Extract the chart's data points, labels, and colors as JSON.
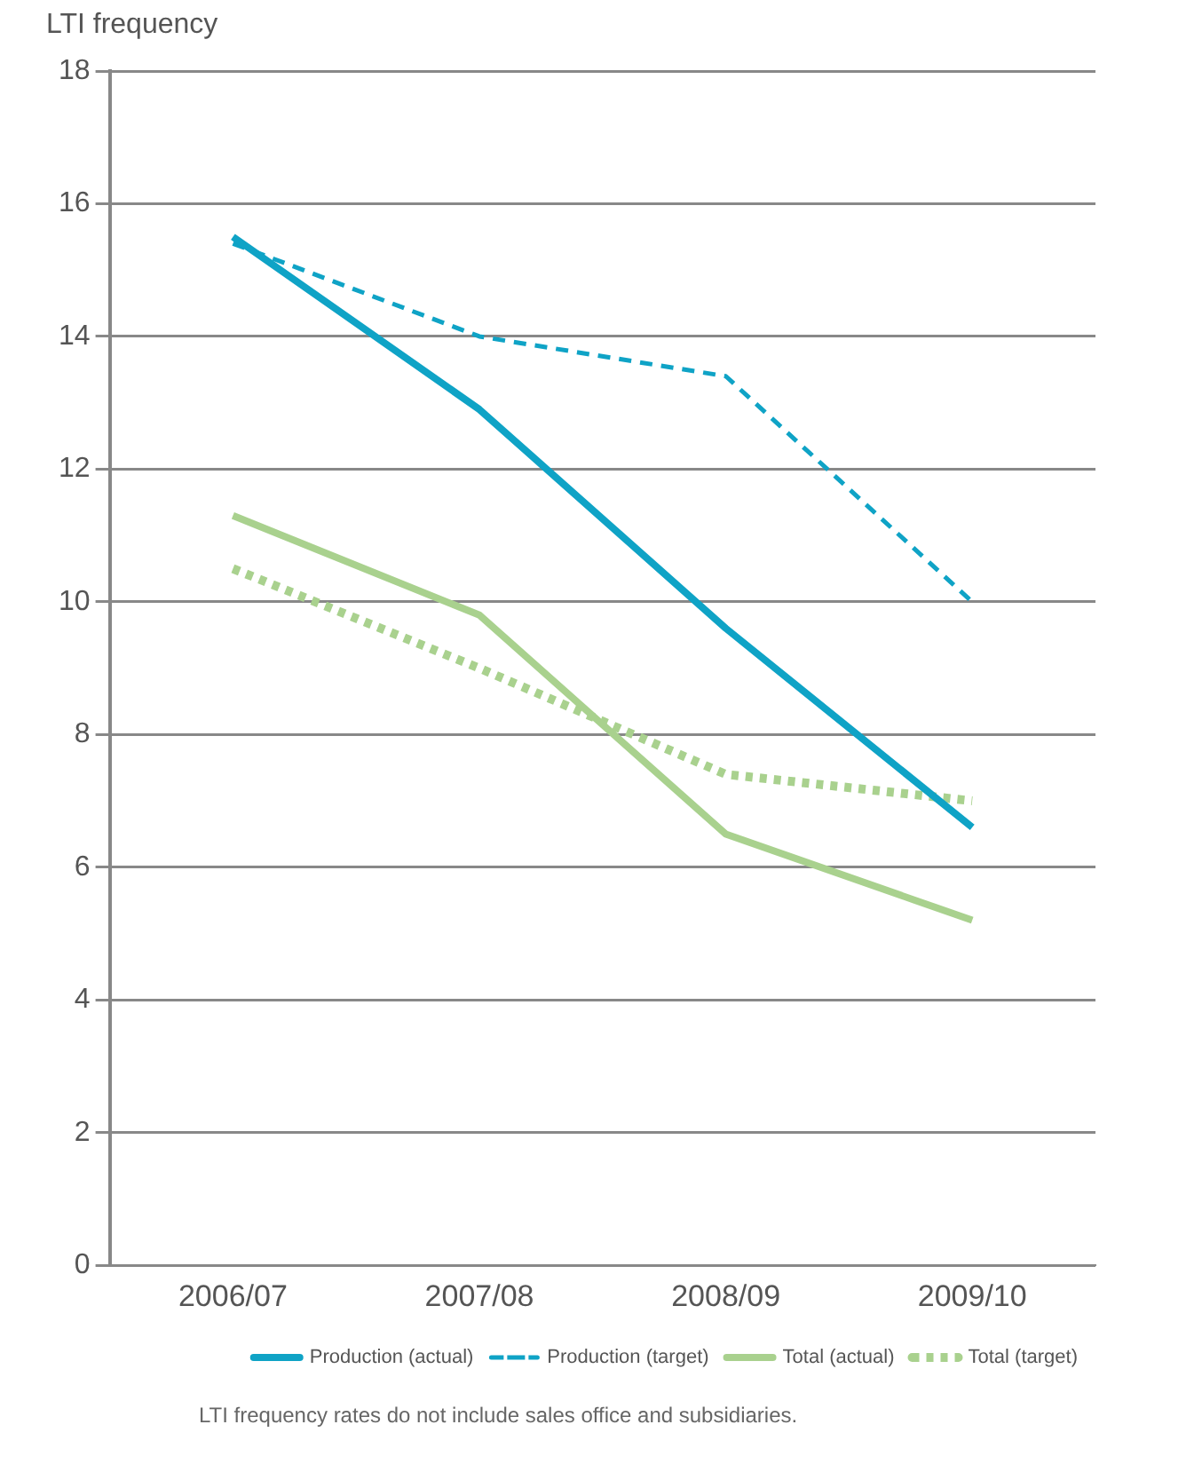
{
  "chart_data": {
    "type": "line",
    "ylabel": "LTI frequency",
    "categories": [
      "2006/07",
      "2007/08",
      "2008/09",
      "2009/10"
    ],
    "series": [
      {
        "name": "Production (actual)",
        "color": "#0fa3c6",
        "values": [
          15.5,
          12.9,
          9.6,
          6.6
        ],
        "line_style": "solid"
      },
      {
        "name": "Production (target)",
        "color": "#0fa3c6",
        "values": [
          15.4,
          14.0,
          13.4,
          10.0
        ],
        "line_style": "dashed"
      },
      {
        "name": "Total (actual)",
        "color": "#a9d18e",
        "values": [
          11.3,
          9.8,
          6.5,
          5.2
        ],
        "line_style": "solid"
      },
      {
        "name": "Total (target)",
        "color": "#a9d18e",
        "values": [
          10.5,
          9.0,
          7.4,
          7.0
        ],
        "line_style": "dotted"
      }
    ],
    "ylim": [
      0,
      18
    ],
    "yticks": [
      0,
      2,
      4,
      6,
      8,
      10,
      12,
      14,
      16,
      18
    ],
    "grid": "y",
    "legend": "bottom",
    "marker": "none",
    "annotations": [
      "LTI frequency rates do not include sales office and subsidiaries."
    ]
  }
}
